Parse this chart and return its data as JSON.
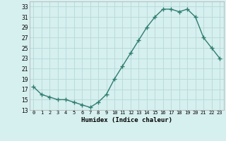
{
  "x": [
    0,
    1,
    2,
    3,
    4,
    5,
    6,
    7,
    8,
    9,
    10,
    11,
    12,
    13,
    14,
    15,
    16,
    17,
    18,
    19,
    20,
    21,
    22,
    23
  ],
  "y": [
    17.5,
    16.0,
    15.5,
    15.0,
    15.0,
    14.5,
    14.0,
    13.5,
    14.5,
    16.0,
    19.0,
    21.5,
    24.0,
    26.5,
    29.0,
    31.0,
    32.5,
    32.5,
    32.0,
    32.5,
    31.0,
    27.0,
    25.0,
    23.0
  ],
  "xlabel": "Humidex (Indice chaleur)",
  "ylim": [
    13,
    34
  ],
  "xlim": [
    -0.5,
    23.5
  ],
  "yticks": [
    13,
    15,
    17,
    19,
    21,
    23,
    25,
    27,
    29,
    31,
    33
  ],
  "xtick_labels": [
    "0",
    "1",
    "2",
    "3",
    "4",
    "5",
    "6",
    "7",
    "8",
    "9",
    "10",
    "11",
    "12",
    "13",
    "14",
    "15",
    "16",
    "17",
    "18",
    "19",
    "20",
    "21",
    "22",
    "23"
  ],
  "line_color": "#2e7d6e",
  "marker": "+",
  "marker_size": 4,
  "bg_color": "#d6efef",
  "grid_color": "#b8d8d8",
  "line_width": 1.0
}
